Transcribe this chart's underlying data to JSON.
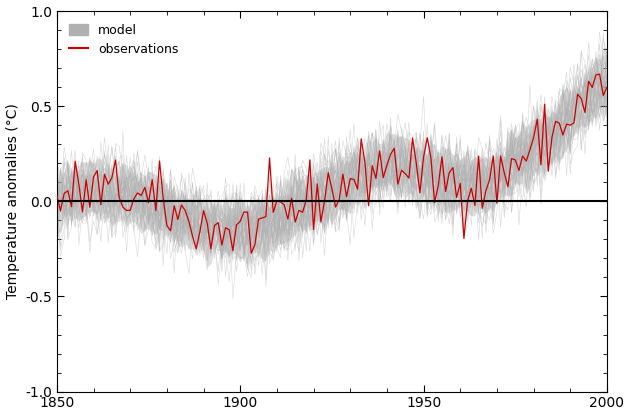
{
  "title": "",
  "ylabel": "Temperature anomalies (°C)",
  "xlabel": "",
  "xlim": [
    1850,
    2000
  ],
  "ylim": [
    -1.0,
    1.0
  ],
  "yticks": [
    -1.0,
    -0.5,
    0.0,
    0.5,
    1.0
  ],
  "xticks": [
    1850,
    1900,
    1950,
    2000
  ],
  "model_color": "#b0b0b0",
  "obs_color": "#cc0000",
  "zero_line_color": "#000000",
  "legend_model_label": "model",
  "legend_obs_label": "observations",
  "figsize": [
    6.3,
    4.16
  ],
  "dpi": 100,
  "seed": 42
}
